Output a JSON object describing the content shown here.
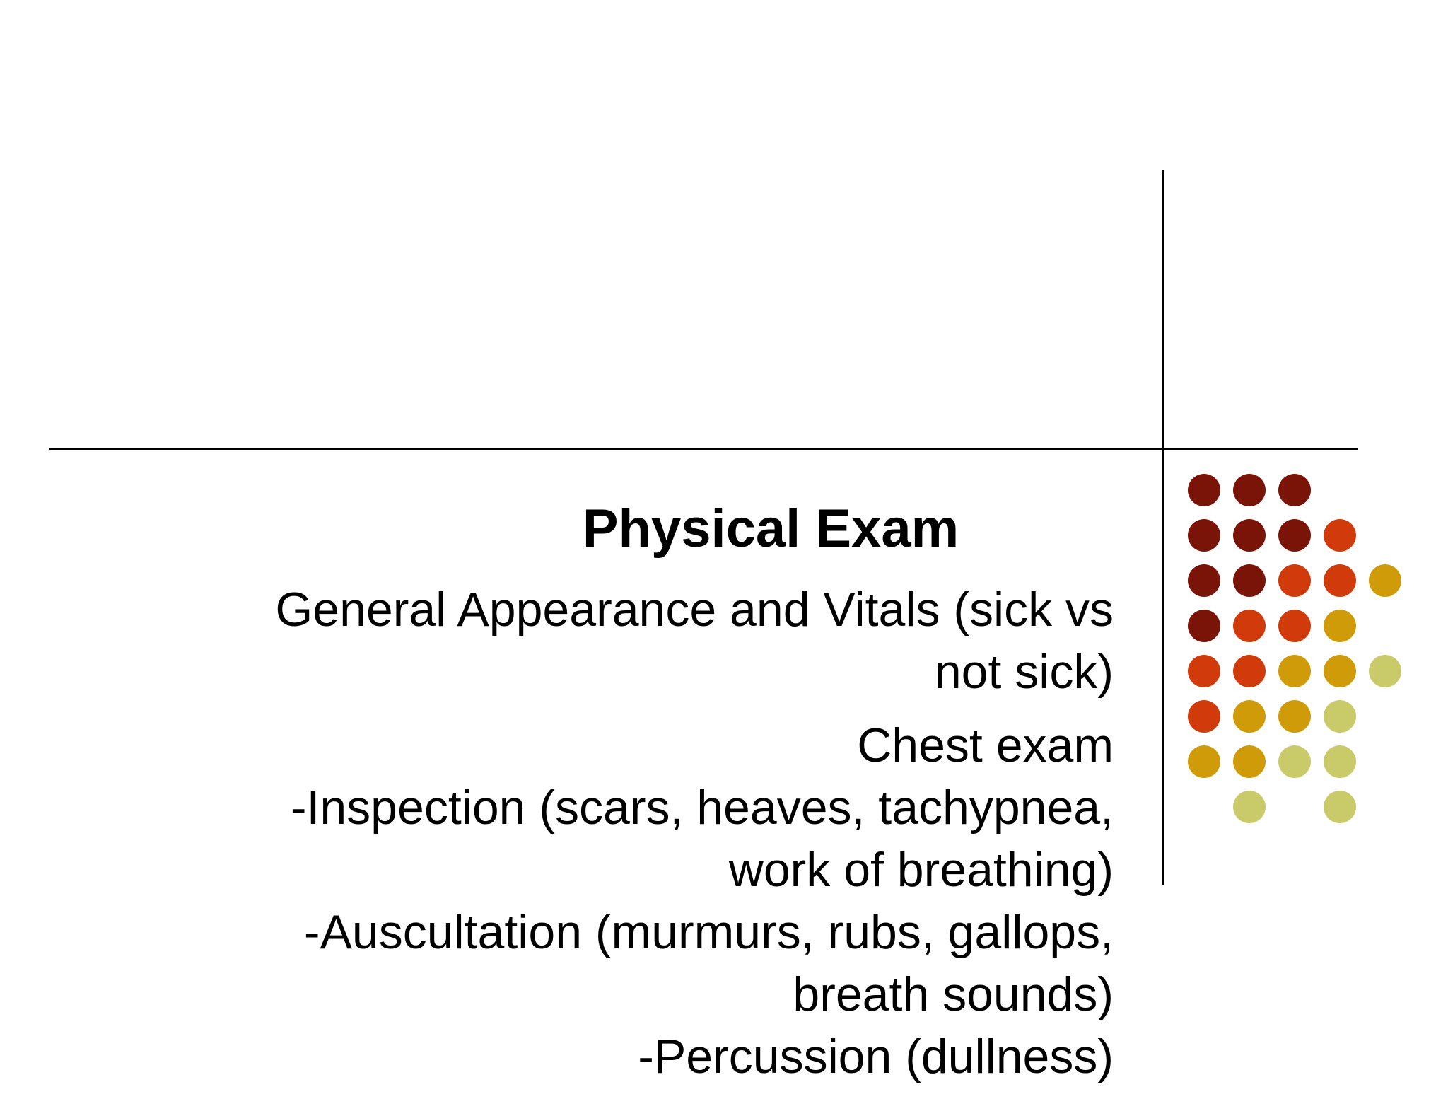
{
  "slide": {
    "title": "Physical Exam",
    "paragraphs": [
      {
        "lines": [
          "General Appearance and Vitals (sick vs",
          "not sick)"
        ]
      },
      {
        "lines": [
          "Chest exam",
          "-Inspection (scars, heaves, tachypnea,",
          "work of breathing)",
          "-Auscultation (murmurs, rubs, gallops,",
          "breath sounds)",
          "-Percussion (dullness)"
        ]
      }
    ]
  },
  "decoration": {
    "colors": {
      "dark-red": "#7a1408",
      "orange-red": "#d13a0a",
      "gold": "#cf9b08",
      "olive": "#c9cb6a"
    },
    "dots": [
      {
        "row": 0,
        "col": 0,
        "color": "dark-red"
      },
      {
        "row": 0,
        "col": 1,
        "color": "dark-red"
      },
      {
        "row": 0,
        "col": 2,
        "color": "dark-red"
      },
      {
        "row": 1,
        "col": 0,
        "color": "dark-red"
      },
      {
        "row": 1,
        "col": 1,
        "color": "dark-red"
      },
      {
        "row": 1,
        "col": 2,
        "color": "dark-red"
      },
      {
        "row": 1,
        "col": 3,
        "color": "orange-red"
      },
      {
        "row": 2,
        "col": 0,
        "color": "dark-red"
      },
      {
        "row": 2,
        "col": 1,
        "color": "dark-red"
      },
      {
        "row": 2,
        "col": 2,
        "color": "orange-red"
      },
      {
        "row": 2,
        "col": 3,
        "color": "orange-red"
      },
      {
        "row": 2,
        "col": 4,
        "color": "gold"
      },
      {
        "row": 3,
        "col": 0,
        "color": "dark-red"
      },
      {
        "row": 3,
        "col": 1,
        "color": "orange-red"
      },
      {
        "row": 3,
        "col": 2,
        "color": "orange-red"
      },
      {
        "row": 3,
        "col": 3,
        "color": "gold"
      },
      {
        "row": 4,
        "col": 0,
        "color": "orange-red"
      },
      {
        "row": 4,
        "col": 1,
        "color": "orange-red"
      },
      {
        "row": 4,
        "col": 2,
        "color": "gold"
      },
      {
        "row": 4,
        "col": 3,
        "color": "gold"
      },
      {
        "row": 4,
        "col": 4,
        "color": "olive"
      },
      {
        "row": 5,
        "col": 0,
        "color": "orange-red"
      },
      {
        "row": 5,
        "col": 1,
        "color": "gold"
      },
      {
        "row": 5,
        "col": 2,
        "color": "gold"
      },
      {
        "row": 5,
        "col": 3,
        "color": "olive"
      },
      {
        "row": 6,
        "col": 0,
        "color": "gold"
      },
      {
        "row": 6,
        "col": 1,
        "color": "gold"
      },
      {
        "row": 6,
        "col": 2,
        "color": "olive"
      },
      {
        "row": 6,
        "col": 3,
        "color": "olive"
      },
      {
        "row": 7,
        "col": 1,
        "color": "olive"
      },
      {
        "row": 7,
        "col": 3,
        "color": "olive"
      }
    ]
  }
}
